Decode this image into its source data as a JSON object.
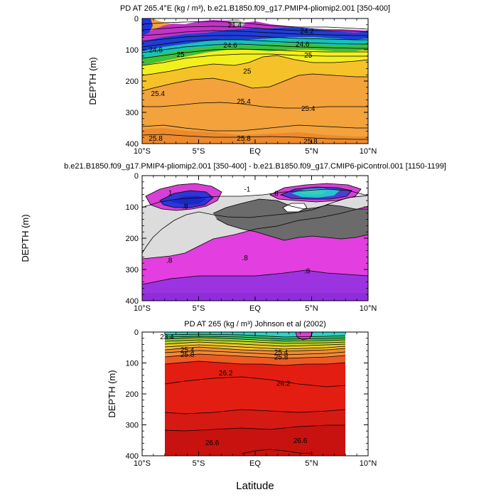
{
  "chart_data": [
    {
      "type": "contour",
      "title": "PD AT 265.4°E (kg / m³), b.e21.B1850.f09_g17.PMIP4-pliomip2.001 [350-400]",
      "xlabel": "",
      "ylabel": "DEPTH (m)",
      "xlim": [
        -10,
        10
      ],
      "ylim": [
        400,
        0
      ],
      "x_ticks": [
        "10°S",
        "5°S",
        "EQ",
        "5°N",
        "10°N"
      ],
      "y_ticks": [
        "0",
        "100",
        "200",
        "300",
        "400"
      ],
      "contour_labels": [
        {
          "text": "21.4",
          "x": -1.8,
          "y": 20
        },
        {
          "text": "24.2",
          "x": 4.6,
          "y": 40
        },
        {
          "text": "24.6",
          "x": -8.8,
          "y": 100
        },
        {
          "text": "24.6",
          "x": -2.2,
          "y": 85
        },
        {
          "text": "24.6",
          "x": 4.2,
          "y": 82
        },
        {
          "text": "25",
          "x": -6.6,
          "y": 115
        },
        {
          "text": "25",
          "x": -0.7,
          "y": 168
        },
        {
          "text": "25",
          "x": 4.7,
          "y": 117
        },
        {
          "text": "25.4",
          "x": -8.6,
          "y": 240
        },
        {
          "text": "25.4",
          "x": -1.0,
          "y": 265
        },
        {
          "text": "25.4",
          "x": 4.7,
          "y": 287
        },
        {
          "text": "25.8",
          "x": -8.8,
          "y": 383
        },
        {
          "text": "25.8",
          "x": -1.0,
          "y": 383
        },
        {
          "text": "25.8",
          "x": 4.9,
          "y": 392
        }
      ]
    },
    {
      "type": "contour",
      "title": "b.e21.B1850.f09_g17.PMIP4-pliomip2.001 [350-400] - b.e21.B1850.f09_g17.CMIP6-piControl.001 [1150-1199]",
      "xlabel": "",
      "ylabel": "DEPTH (m)",
      "xlim": [
        -10,
        10
      ],
      "ylim": [
        400,
        0
      ],
      "x_ticks": [
        "10°S",
        "5°S",
        "EQ",
        "5°N",
        "10°N"
      ],
      "y_ticks": [
        "0",
        "100",
        "200",
        "300",
        "400"
      ],
      "contour_labels": [
        {
          "text": "1",
          "x": -7.5,
          "y": 55
        },
        {
          "text": "-1",
          "x": -0.7,
          "y": 43
        },
        {
          "text": ".8",
          "x": -6.2,
          "y": 98
        },
        {
          "text": "-.8",
          "x": 1.7,
          "y": 57
        },
        {
          "text": ".8",
          "x": -7.6,
          "y": 270
        },
        {
          "text": ".8",
          "x": -0.9,
          "y": 262
        },
        {
          "text": ".8",
          "x": 4.6,
          "y": 305
        }
      ]
    },
    {
      "type": "contour",
      "title": "PD AT 265 (kg / m³) Johnson et al (2002)",
      "xlabel": "Latitude",
      "ylabel": "DEPTH (m)",
      "xlim": [
        -10,
        10
      ],
      "ylim": [
        400,
        0
      ],
      "x_ticks": [
        "10°S",
        "5°S",
        "EQ",
        "5°N",
        "10°N"
      ],
      "y_ticks": [
        "0",
        "100",
        "200",
        "300",
        "400"
      ],
      "contour_labels": [
        {
          "text": "23.4",
          "x": -7.8,
          "y": 15
        },
        {
          "text": "25.4",
          "x": -6.0,
          "y": 58
        },
        {
          "text": "25.8",
          "x": -6.0,
          "y": 72
        },
        {
          "text": "25.4",
          "x": 2.3,
          "y": 66
        },
        {
          "text": "25.8",
          "x": 2.3,
          "y": 80
        },
        {
          "text": "26.2",
          "x": -2.6,
          "y": 132
        },
        {
          "text": "26.2",
          "x": 2.5,
          "y": 165
        },
        {
          "text": "26.6",
          "x": -3.8,
          "y": 358
        },
        {
          "text": "26.6",
          "x": 4.0,
          "y": 350
        }
      ]
    }
  ]
}
